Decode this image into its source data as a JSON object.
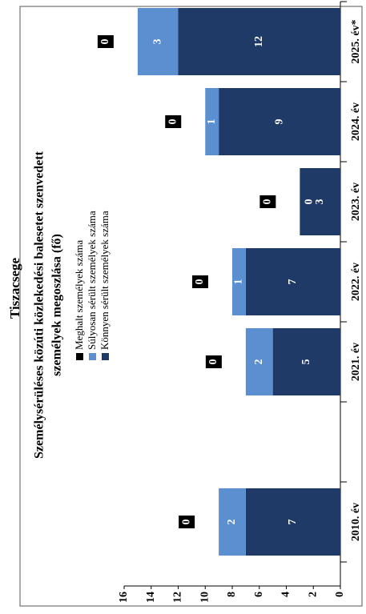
{
  "chart_data": {
    "type": "stacked-bar",
    "title": "Tiszacsege",
    "subtitle": [
      "Személysérüléses közúti közlekedési balesetet szenvedett",
      "személyek megoszlása (fő)"
    ],
    "categories": [
      "2010. év",
      null,
      "2021. év",
      "2022. év",
      "2023. év",
      "2024. év",
      "2025. év*"
    ],
    "series": [
      {
        "name": "Könnyen sérült személyek száma",
        "color": "#1f3a66",
        "values": [
          7,
          null,
          5,
          7,
          3,
          9,
          12
        ]
      },
      {
        "name": "Súlyosan sérült személyek száma",
        "color": "#5b8fd0",
        "values": [
          2,
          null,
          2,
          1,
          0,
          1,
          3
        ]
      },
      {
        "name": "Meghalt személyek száma",
        "color": "#000000",
        "values": [
          0,
          null,
          0,
          0,
          0,
          0,
          0
        ]
      }
    ],
    "legend_order": [
      2,
      1,
      0
    ],
    "ylim": [
      0,
      16
    ],
    "yticks": [
      0,
      2,
      4,
      6,
      8,
      10,
      12,
      14,
      16
    ],
    "grid": false
  }
}
